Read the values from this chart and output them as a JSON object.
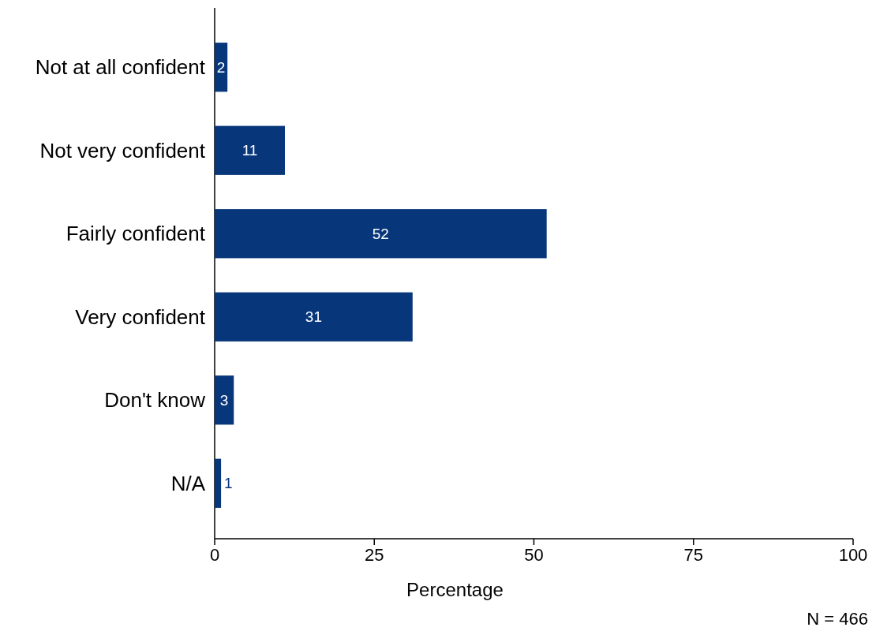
{
  "chart_data": {
    "type": "bar",
    "orientation": "horizontal",
    "categories": [
      "Not at all confident",
      "Not very confident",
      "Fairly confident",
      "Very confident",
      "Don't know",
      "N/A"
    ],
    "values": [
      2,
      11,
      52,
      31,
      3,
      1
    ],
    "color": "#08367b",
    "xlim": [
      0,
      100
    ],
    "xticks": [
      0,
      25,
      50,
      75,
      100
    ],
    "xlabel": "Percentage",
    "data_labels": true,
    "grid": false,
    "annotations": [
      "N = 466"
    ]
  }
}
